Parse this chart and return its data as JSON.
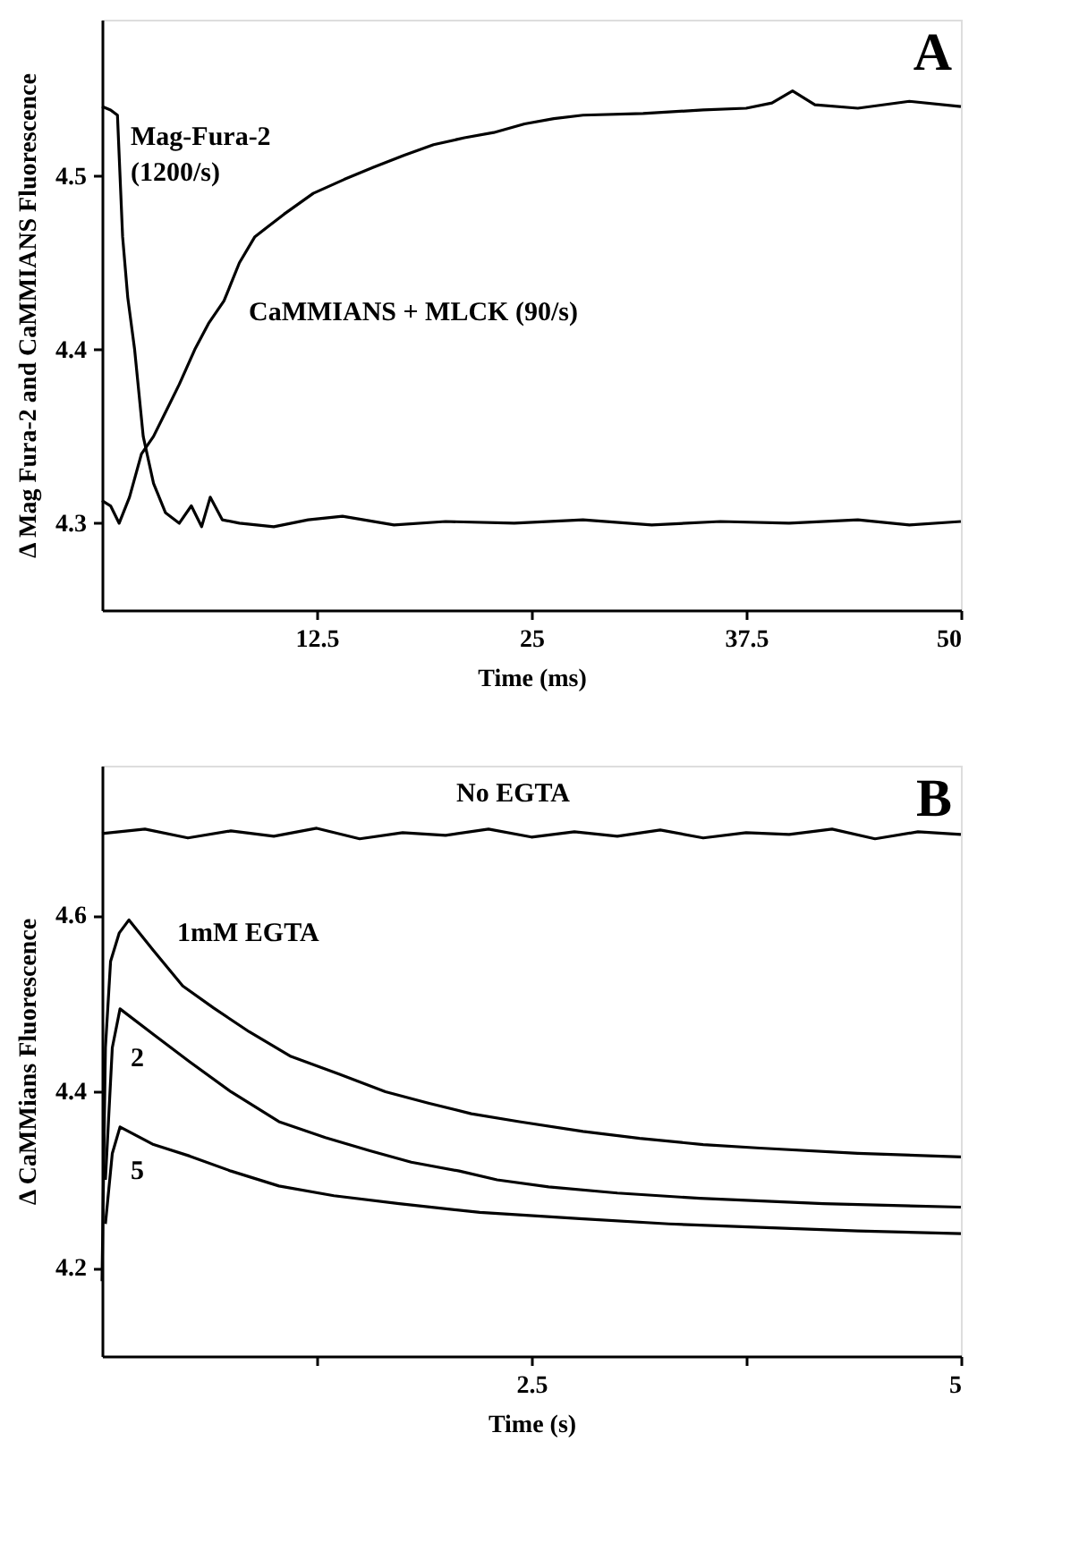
{
  "chart_data": [
    {
      "type": "line",
      "xlabel": "Time (ms)",
      "ylabel": "Δ Mag Fura-2 and CaMMIANS Fluorescence",
      "xlim": [
        0,
        50
      ],
      "ylim": [
        4.25,
        4.59
      ],
      "xticks": [
        12.5,
        25,
        37.5,
        50
      ],
      "yticks": [
        4.3,
        4.4,
        4.5
      ],
      "grid": false,
      "series": [
        {
          "name": "Mag-Fura-2\n(1200/s)",
          "color": "#000000",
          "x": [
            0,
            0.5,
            0.9,
            1.2,
            1.5,
            1.9,
            2.4,
            3.0,
            3.7,
            4.5,
            5.2,
            5.8,
            6.3,
            7.0,
            8.0,
            10,
            12,
            14,
            17,
            20,
            24,
            28,
            32,
            36,
            40,
            44,
            47,
            50
          ],
          "values": [
            4.54,
            4.538,
            4.535,
            4.465,
            4.43,
            4.4,
            4.35,
            4.323,
            4.306,
            4.3,
            4.31,
            4.298,
            4.315,
            4.302,
            4.3,
            4.298,
            4.302,
            4.304,
            4.299,
            4.301,
            4.3,
            4.302,
            4.299,
            4.301,
            4.3,
            4.302,
            4.299,
            4.301
          ]
        },
        {
          "name": "CaMMIANS + MLCK (90/s)",
          "color": "#000000",
          "x": [
            0,
            0.5,
            1.0,
            1.6,
            2.3,
            3.0,
            3.7,
            4.5,
            5.4,
            6.2,
            7.1,
            8.0,
            8.9,
            10.6,
            12.3,
            14.1,
            15.8,
            17.6,
            19.3,
            21.1,
            22.8,
            24.6,
            26.3,
            28.0,
            31.5,
            35,
            37.5,
            39,
            40.2,
            41.5,
            44,
            47,
            50
          ],
          "values": [
            4.313,
            4.31,
            4.3,
            4.315,
            4.34,
            4.35,
            4.364,
            4.38,
            4.4,
            4.415,
            4.428,
            4.45,
            4.465,
            4.478,
            4.49,
            4.498,
            4.505,
            4.512,
            4.518,
            4.522,
            4.525,
            4.53,
            4.533,
            4.535,
            4.536,
            4.538,
            4.539,
            4.542,
            4.549,
            4.541,
            4.539,
            4.543,
            4.54
          ]
        }
      ],
      "annotations": [
        "A"
      ]
    },
    {
      "type": "line",
      "xlabel": "Time (s)",
      "ylabel": "Δ CaMMians Fluorescence",
      "xlim": [
        0,
        5
      ],
      "ylim": [
        4.1,
        4.77
      ],
      "xticks": [
        {
          "value": 1.25,
          "label": null
        },
        2.5,
        {
          "value": 3.75,
          "label": null
        },
        5
      ],
      "yticks": [
        4.2,
        4.4,
        4.6
      ],
      "grid": false,
      "series": [
        {
          "name": "No EGTA",
          "color": "#000000",
          "x": [
            0,
            0.25,
            0.5,
            0.75,
            1.0,
            1.25,
            1.5,
            1.75,
            2.0,
            2.25,
            2.5,
            2.75,
            3.0,
            3.25,
            3.5,
            3.75,
            4.0,
            4.25,
            4.5,
            4.75,
            5.0
          ],
          "values": [
            4.693,
            4.698,
            4.688,
            4.696,
            4.69,
            4.699,
            4.687,
            4.694,
            4.691,
            4.698,
            4.689,
            4.695,
            4.69,
            4.697,
            4.688,
            4.694,
            4.692,
            4.698,
            4.687,
            4.695,
            4.692
          ]
        },
        {
          "name": "1mM EGTA",
          "color": "#000000",
          "x": [
            0,
            0.02,
            0.05,
            0.1,
            0.157,
            0.3,
            0.47,
            0.65,
            0.857,
            1.1,
            1.38,
            1.65,
            1.9,
            2.15,
            2.43,
            2.8,
            3.13,
            3.5,
            3.83,
            4.4,
            5.0
          ],
          "values": [
            4.185,
            4.45,
            4.548,
            4.58,
            4.595,
            4.56,
            4.52,
            4.495,
            4.468,
            4.44,
            4.42,
            4.4,
            4.387,
            4.375,
            4.366,
            4.355,
            4.347,
            4.34,
            4.336,
            4.33,
            4.326
          ]
        },
        {
          "name": "2",
          "color": "#000000",
          "x": [
            0.02,
            0.06,
            0.105,
            0.3,
            0.51,
            0.75,
            1.03,
            1.3,
            1.56,
            1.8,
            2.08,
            2.3,
            2.6,
            3.0,
            3.48,
            4.2,
            5.0
          ],
          "values": [
            4.3,
            4.45,
            4.494,
            4.465,
            4.434,
            4.4,
            4.366,
            4.348,
            4.333,
            4.32,
            4.31,
            4.3,
            4.292,
            4.285,
            4.279,
            4.273,
            4.269
          ]
        },
        {
          "name": "5",
          "color": "#000000",
          "x": [
            0.02,
            0.06,
            0.105,
            0.3,
            0.51,
            0.75,
            1.03,
            1.35,
            1.73,
            2.2,
            2.78,
            3.3,
            3.83,
            4.4,
            5.0
          ],
          "values": [
            4.25,
            4.33,
            4.36,
            4.34,
            4.327,
            4.31,
            4.293,
            4.282,
            4.273,
            4.263,
            4.256,
            4.25,
            4.246,
            4.242,
            4.239
          ]
        }
      ],
      "annotations": [
        "B"
      ]
    }
  ]
}
